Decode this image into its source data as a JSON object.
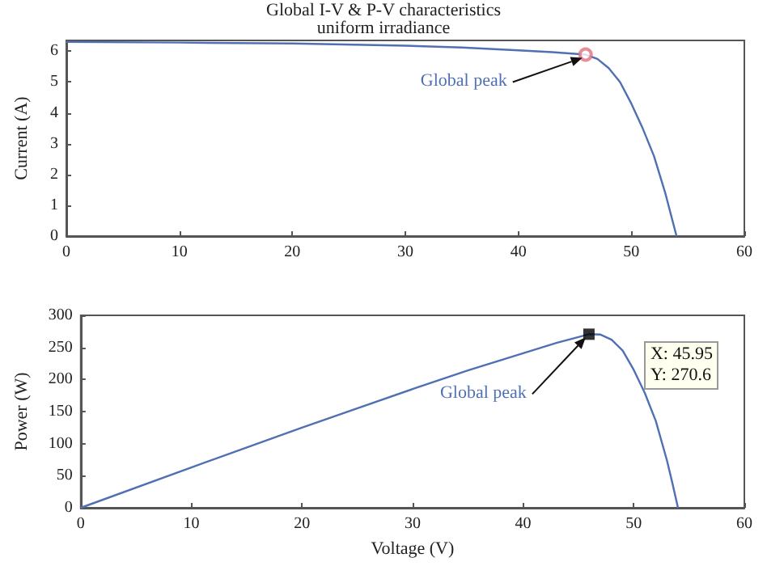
{
  "chart_data": [
    {
      "type": "line",
      "title": "Global I-V & P-V characteristics",
      "subtitle": "uniform irradiance",
      "ylabel": "Current (A)",
      "xlim": [
        0,
        60
      ],
      "xticks": [
        0,
        10,
        20,
        30,
        40,
        50,
        60
      ],
      "ylim": [
        0,
        6.35
      ],
      "yticks": [
        0,
        1,
        2,
        3,
        4,
        5,
        6
      ],
      "series": [
        {
          "color": "#5070b4",
          "marker": "none",
          "x": [
            0,
            10,
            20,
            30,
            35,
            40,
            43,
            45.95,
            47,
            48,
            49,
            50,
            51,
            52,
            53,
            53.5,
            54
          ],
          "values": [
            6.3,
            6.28,
            6.25,
            6.18,
            6.12,
            6.03,
            5.97,
            5.89,
            5.75,
            5.45,
            5.0,
            4.3,
            3.5,
            2.6,
            1.4,
            0.7,
            0
          ]
        },
        {
          "type": "scatter",
          "color": "#e07080",
          "marker": "circle",
          "x": [
            45.95
          ],
          "values": [
            5.89
          ]
        }
      ],
      "annotations": [
        "Global peak"
      ]
    },
    {
      "type": "line",
      "xlabel": "Voltage (V)",
      "ylabel": "Power (W)",
      "xlim": [
        0,
        60
      ],
      "xticks": [
        0,
        10,
        20,
        30,
        40,
        50,
        60
      ],
      "ylim": [
        0,
        300
      ],
      "yticks": [
        0,
        50,
        100,
        150,
        200,
        250,
        300
      ],
      "series": [
        {
          "color": "#5070b4",
          "marker": "none",
          "x": [
            0,
            10,
            20,
            30,
            35,
            40,
            43,
            45.95,
            47,
            48,
            49,
            50,
            51,
            52,
            53,
            53.5,
            54
          ],
          "values": [
            0,
            63,
            125,
            185,
            214,
            241,
            257,
            270.6,
            270,
            262,
            245,
            215,
            179,
            135,
            74,
            38,
            0
          ]
        },
        {
          "type": "scatter",
          "color": "#000000",
          "marker": "square",
          "x": [
            45.95
          ],
          "values": [
            270.6
          ]
        }
      ],
      "annotations": [
        "Global peak",
        "X: 45.95\nY: 270.6"
      ]
    }
  ]
}
